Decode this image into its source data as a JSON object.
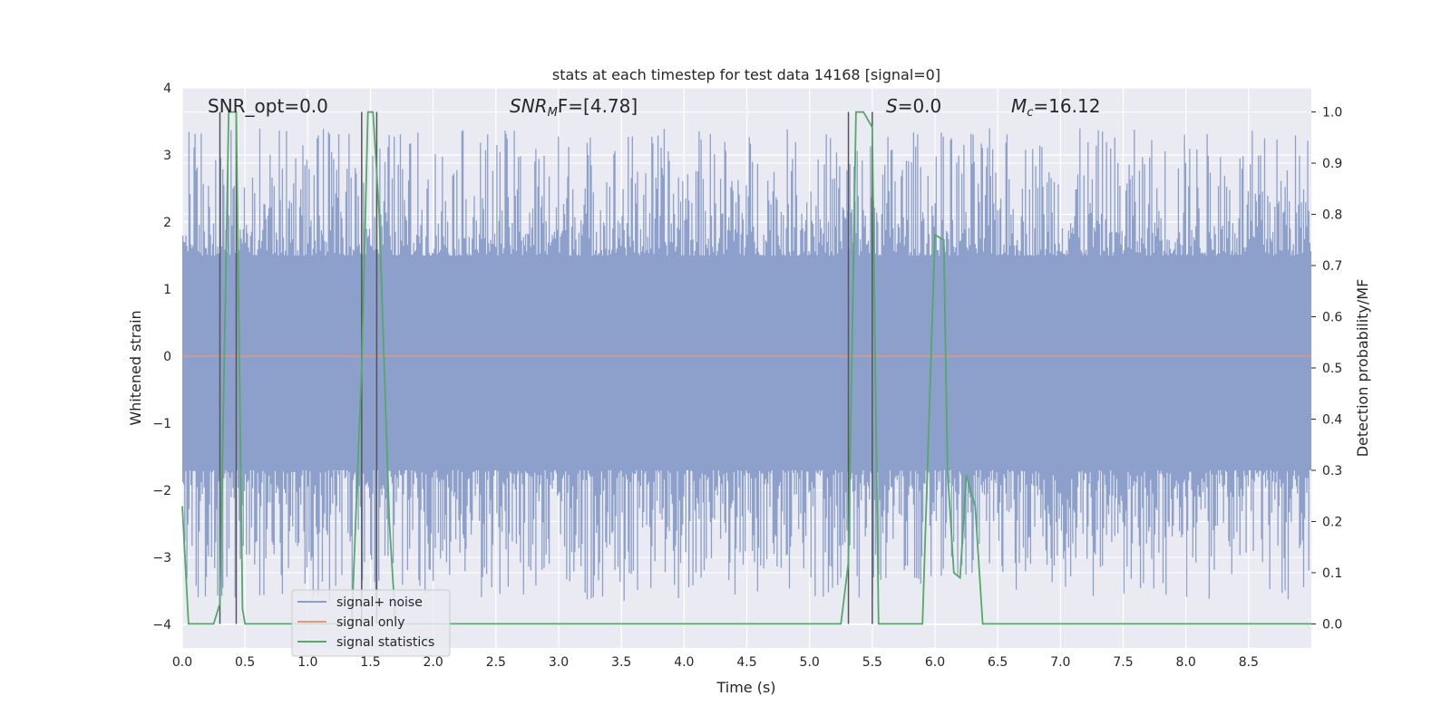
{
  "chart_data": {
    "type": "line",
    "title": "stats at each timestep for test data 14168 [signal=0]",
    "xlabel": "Time (s)",
    "ylabel_left": "Whitened strain",
    "ylabel_right": "Detection probability/MF",
    "xlim": [
      0.0,
      9.0
    ],
    "ylim_left": [
      -4.35,
      4.0
    ],
    "ylim_right": [
      -0.047,
      1.047
    ],
    "x_ticks": [
      "0.0",
      "0.5",
      "1.0",
      "1.5",
      "2.0",
      "2.5",
      "3.0",
      "3.5",
      "4.0",
      "4.5",
      "5.0",
      "5.5",
      "6.0",
      "6.5",
      "7.0",
      "7.5",
      "8.0",
      "8.5"
    ],
    "y_ticks_left": [
      "4",
      "3",
      "2",
      "1",
      "0",
      "−1",
      "−2",
      "−3",
      "−4"
    ],
    "y_ticks_right": [
      "1.0",
      "0.9",
      "0.8",
      "0.7",
      "0.6",
      "0.5",
      "0.4",
      "0.3",
      "0.2",
      "0.1",
      "0.0"
    ],
    "grid": true,
    "legend_position": "lower-left",
    "annotations": {
      "snr_opt": "SNR_opt=0.0",
      "snr_mf_main": "SNR",
      "snr_mf_sub": "M",
      "snr_mf_rest": "F=[4.78]",
      "s_main": "S",
      "s_rest": "=0.0",
      "mc_main": "M",
      "mc_sub": "c",
      "mc_rest": "=16.12"
    },
    "series": [
      {
        "name": "signal+ noise",
        "color": "#8da0cb",
        "envelope": {
          "description_free": true,
          "x_range": [
            0.0,
            9.0
          ],
          "typical_upper": 1.5,
          "typical_lower": -1.7,
          "peak_max": 3.4,
          "peak_min": -3.65
        }
      },
      {
        "name": "signal only",
        "color": "#e5977a",
        "x": [
          0.0,
          9.0
        ],
        "y": [
          0.0,
          0.0
        ]
      },
      {
        "name": "signal statistics",
        "color": "#55a868",
        "axis": "right",
        "x": [
          0.0,
          0.05,
          0.25,
          0.3,
          0.37,
          0.43,
          0.48,
          0.5,
          0.55,
          1.35,
          1.43,
          1.48,
          1.52,
          1.57,
          1.65,
          1.7,
          5.25,
          5.31,
          5.37,
          5.43,
          5.5,
          5.55,
          5.6,
          5.85,
          5.9,
          6.0,
          6.07,
          6.1,
          6.15,
          6.2,
          6.25,
          6.32,
          6.38,
          6.45,
          9.0
        ],
        "y": [
          0.23,
          0.0,
          0.0,
          0.04,
          1.0,
          1.0,
          0.03,
          0.0,
          0.0,
          0.0,
          0.5,
          1.0,
          1.0,
          0.8,
          0.2,
          0.0,
          0.0,
          0.12,
          1.0,
          1.0,
          0.97,
          0.0,
          0.0,
          0.0,
          0.0,
          0.76,
          0.75,
          0.3,
          0.1,
          0.09,
          0.29,
          0.23,
          0.0,
          0.0,
          0.0
        ]
      }
    ],
    "vertical_markers": [
      0.3,
      0.43,
      1.43,
      1.55,
      5.31,
      5.5
    ]
  }
}
